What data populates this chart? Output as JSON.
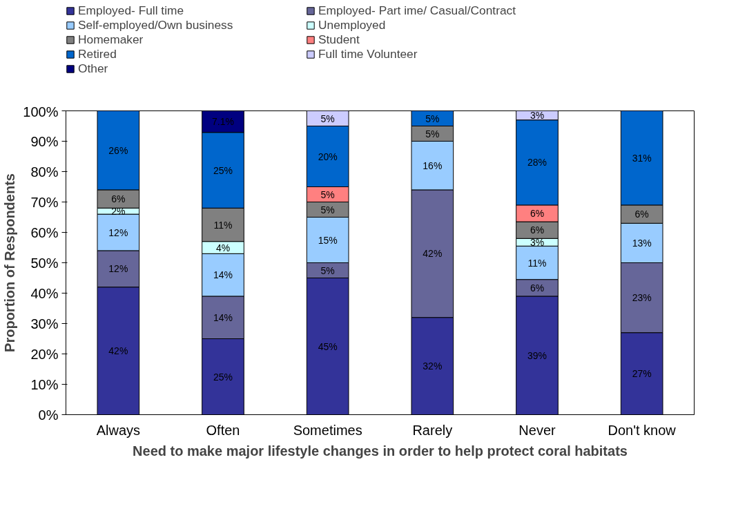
{
  "chart_data": {
    "type": "bar",
    "stacked": true,
    "xlabel": "Need to make major lifestyle changes in order to help protect coral habitats",
    "ylabel": "Proportion of Respondents",
    "categories": [
      "Always",
      "Often",
      "Sometimes",
      "Rarely",
      "Never",
      "Don't know"
    ],
    "ylim": [
      0,
      100
    ],
    "yticks": [
      {
        "value": 0,
        "label": "0%"
      },
      {
        "value": 10,
        "label": "10%"
      },
      {
        "value": 20,
        "label": "20%"
      },
      {
        "value": 30,
        "label": "30%"
      },
      {
        "value": 40,
        "label": "40%"
      },
      {
        "value": 50,
        "label": "50%"
      },
      {
        "value": 60,
        "label": "60%"
      },
      {
        "value": 70,
        "label": "70%"
      },
      {
        "value": 80,
        "label": "80%"
      },
      {
        "value": 90,
        "label": "90%"
      },
      {
        "value": 100,
        "label": "100%"
      }
    ],
    "grid": false,
    "legend": "top",
    "series": [
      {
        "name": "Employed- Full time",
        "color": "#333399",
        "values": [
          42,
          25,
          45,
          32,
          39,
          27
        ],
        "value_labels": [
          "42%",
          "25%",
          "45%",
          "32%",
          "39%",
          "27%"
        ]
      },
      {
        "name": "Employed- Part ime/ Casual/Contract",
        "color": "#666699",
        "values": [
          12,
          14,
          5,
          42,
          5.5,
          23
        ],
        "value_labels": [
          "12%",
          "14%",
          "5%",
          "42%",
          "6%",
          "23%"
        ]
      },
      {
        "name": "Self-employed/Own business",
        "color": "#99ccff",
        "values": [
          12,
          14,
          15,
          16,
          11,
          13
        ],
        "value_labels": [
          "12%",
          "14%",
          "15%",
          "16%",
          "11%",
          "13%"
        ]
      },
      {
        "name": "Unemployed",
        "color": "#ccffff",
        "values": [
          2,
          4,
          null,
          null,
          2.5,
          null
        ],
        "value_labels": [
          "2%",
          "4%",
          null,
          null,
          "3%",
          null
        ]
      },
      {
        "name": "Homemaker",
        "color": "#808080",
        "values": [
          6,
          11,
          5,
          5,
          5.5,
          6
        ],
        "value_labels": [
          "6%",
          "11%",
          "5%",
          "5%",
          "6%",
          "6%"
        ]
      },
      {
        "name": "Student",
        "color": "#ff8080",
        "values": [
          null,
          null,
          5,
          null,
          5.5,
          null
        ],
        "value_labels": [
          null,
          null,
          "5%",
          null,
          "6%",
          null
        ]
      },
      {
        "name": "Retired",
        "color": "#0066cc",
        "values": [
          26,
          24.9,
          20,
          5,
          28,
          31
        ],
        "value_labels": [
          "26%",
          "25%",
          "20%",
          "5%",
          "28%",
          "31%"
        ]
      },
      {
        "name": "Full time Volunteer",
        "color": "#ccccff",
        "values": [
          null,
          null,
          5,
          null,
          3,
          null
        ],
        "value_labels": [
          null,
          null,
          "5%",
          null,
          "3%",
          null
        ]
      },
      {
        "name": "Other",
        "color": "#000080",
        "values": [
          null,
          7.1,
          null,
          null,
          null,
          null
        ],
        "value_labels": [
          null,
          "7.1%",
          null,
          null,
          null,
          null
        ]
      }
    ]
  }
}
